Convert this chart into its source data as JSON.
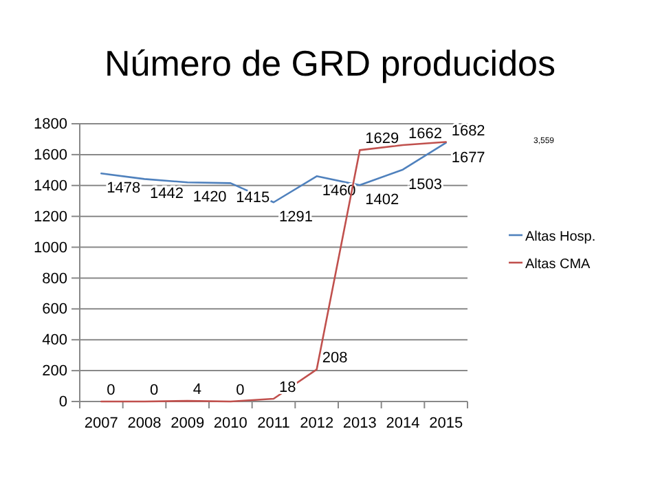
{
  "chart_data": {
    "type": "line",
    "title": "Número de GRD producidos",
    "categories": [
      "2007",
      "2008",
      "2009",
      "2010",
      "2011",
      "2012",
      "2013",
      "2014",
      "2015"
    ],
    "series": [
      {
        "name": "Altas Hosp.",
        "color": "#4f81bd",
        "values": [
          1478,
          1442,
          1420,
          1415,
          1291,
          1460,
          1402,
          1503,
          1677
        ]
      },
      {
        "name": "Altas CMA",
        "color": "#c0504d",
        "values": [
          0,
          0,
          4,
          0,
          18,
          208,
          1629,
          1662,
          1682
        ]
      }
    ],
    "ylim": [
      0,
      1800
    ],
    "yticks": [
      0,
      200,
      400,
      600,
      800,
      1000,
      1200,
      1400,
      1600,
      1800
    ],
    "grid": "y",
    "legend": "right",
    "data_labels": true,
    "annotations": [
      "3,559"
    ]
  }
}
